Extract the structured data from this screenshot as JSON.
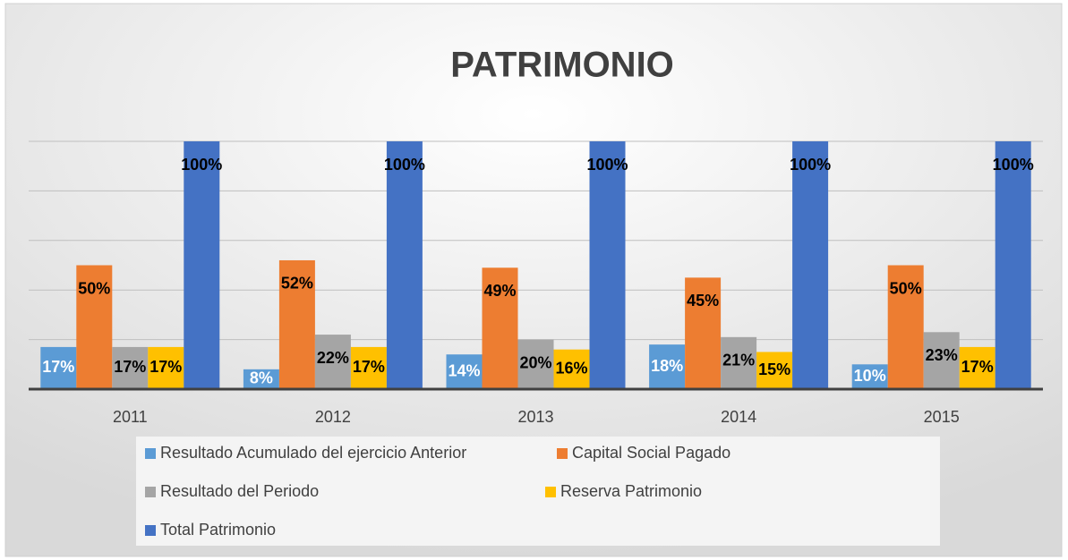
{
  "chart_data": {
    "type": "bar",
    "title": "PATRIMONIO",
    "categories": [
      "2011",
      "2012",
      "2013",
      "2014",
      "2015"
    ],
    "series": [
      {
        "name": "Resultado Acumulado del ejercicio Anterior",
        "color": "#5b9bd5",
        "label_color": "#ffffff",
        "values": [
          17,
          8,
          14,
          18,
          10
        ],
        "value_labels": [
          "17%",
          "8%",
          "14%",
          "18%",
          "10%"
        ]
      },
      {
        "name": "Capital Social Pagado",
        "color": "#ed7d31",
        "label_color": "#000000",
        "values": [
          50,
          52,
          49,
          45,
          50
        ],
        "value_labels": [
          "50%",
          "52%",
          "49%",
          "45%",
          "50%"
        ]
      },
      {
        "name": "Resultado del Periodo",
        "color": "#a5a5a5",
        "label_color": "#000000",
        "values": [
          17,
          22,
          20,
          21,
          23
        ],
        "value_labels": [
          "17%",
          "22%",
          "20%",
          "21%",
          "23%"
        ]
      },
      {
        "name": "Reserva Patrimonio",
        "color": "#ffc000",
        "label_color": "#000000",
        "values": [
          17,
          17,
          16,
          15,
          17
        ],
        "value_labels": [
          "17%",
          "17%",
          "16%",
          "15%",
          "17%"
        ]
      },
      {
        "name": "Total Patrimonio",
        "color": "#4472c4",
        "label_color": "#000000",
        "values": [
          100,
          100,
          100,
          100,
          100
        ],
        "value_labels": [
          "100%",
          "100%",
          "100%",
          "100%",
          "100%"
        ]
      }
    ],
    "ylim": [
      0,
      100
    ],
    "yticks": [
      0,
      20,
      40,
      60,
      80,
      100
    ],
    "grid": true,
    "legend": "bottom"
  }
}
